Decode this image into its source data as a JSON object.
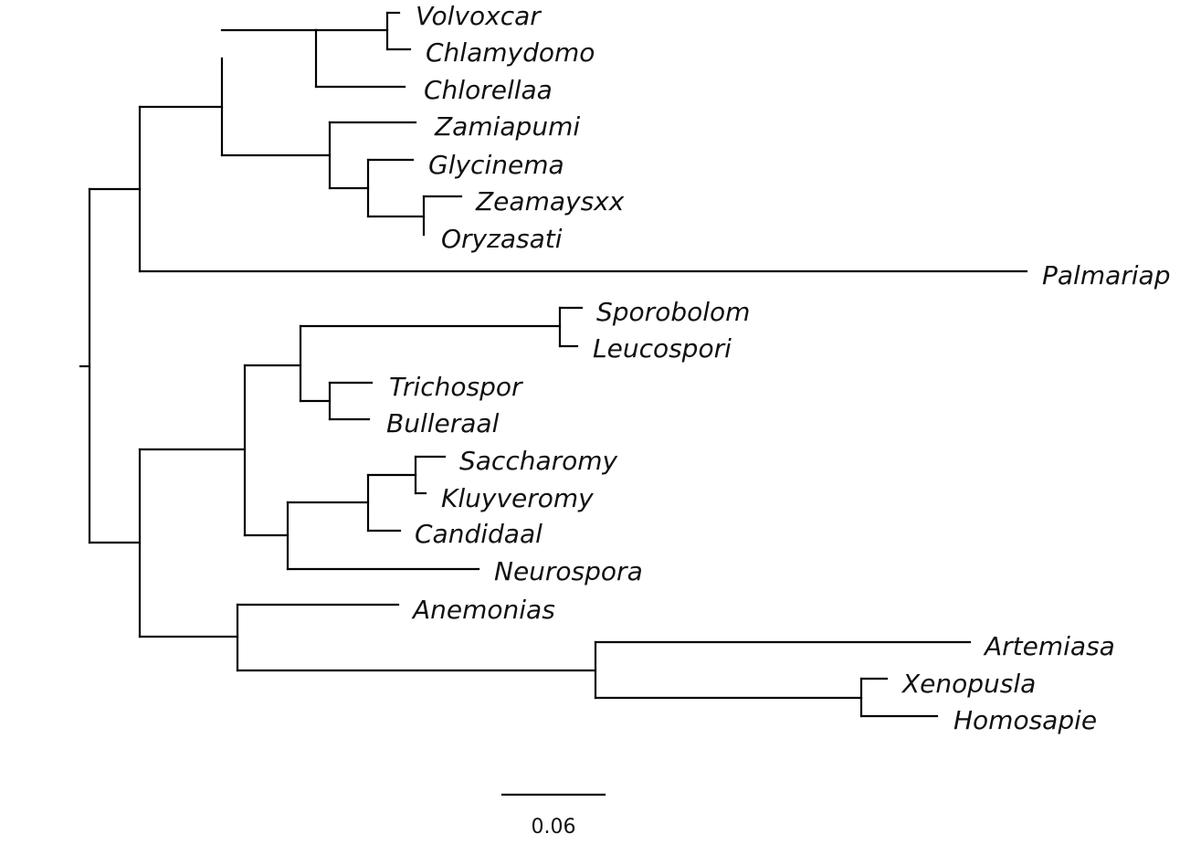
{
  "tree": {
    "taxa": [
      "Volvoxcar",
      "Chlamydomo",
      "Chlorellaa",
      "Zamiapumi",
      "Glycinema",
      "Zeamaysxx",
      "Oryzasati",
      "Palmariap",
      "Sporobolom",
      "Leucospori",
      "Trichospor",
      "Bulleraal",
      "Saccharomy",
      "Kluyveromy",
      "Candidaal",
      "Neurospora",
      "Anemonias",
      "Artemiasa",
      "Xenopusla",
      "Homosapie"
    ]
  },
  "scale_bar": {
    "label": "0.06"
  },
  "colors": {
    "branch": "#000000",
    "text": "#111111",
    "background": "#ffffff"
  }
}
